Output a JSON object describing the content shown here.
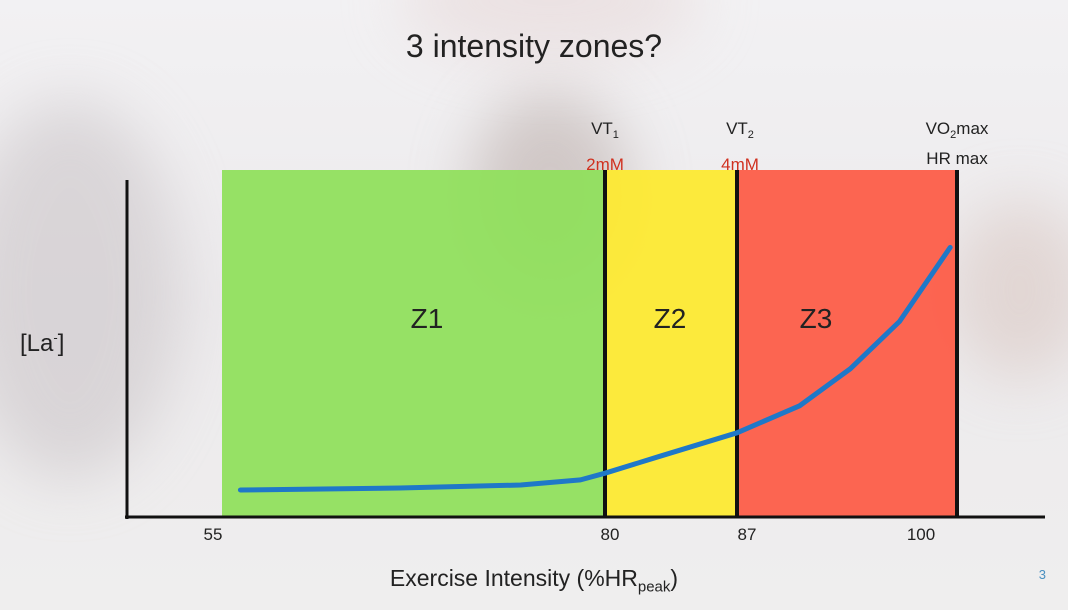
{
  "slide": {
    "title": "3 intensity zones?",
    "page_number": "3"
  },
  "chart_data": {
    "type": "line",
    "title": "3 intensity zones?",
    "xlabel": "Exercise Intensity (%HR",
    "xlabel_sub": "peak",
    "xlabel_end": ")",
    "ylabel": "[La",
    "ylabel_sup": "-",
    "ylabel_end": "]",
    "x_ticks": [
      55,
      80,
      87,
      100
    ],
    "y_scale": "relative (no ticks)",
    "grid": false,
    "zones": [
      {
        "label": "Z1",
        "from": 55,
        "to": 80,
        "color": "#8fe05a"
      },
      {
        "label": "Z2",
        "from": 80,
        "to": 87,
        "color": "#fdea2e"
      },
      {
        "label": "Z3",
        "from": 87,
        "to": 100,
        "color": "#fd5a45"
      }
    ],
    "markers": [
      {
        "x": 80,
        "label": "VT",
        "sub": "1",
        "value": "2mM"
      },
      {
        "x": 87,
        "label": "VT",
        "sub": "2",
        "value": "4mM"
      },
      {
        "x": 100,
        "label": "VO",
        "sub": "2",
        "label_end": "max",
        "value": "HR max"
      }
    ],
    "series": [
      {
        "color": "#1f78c8",
        "x": [
          56.2,
          66.6,
          74.5,
          78.4,
          80,
          82.9,
          87,
          90.7,
          93.7,
          96.6,
          99.6
        ],
        "y": [
          0.08,
          0.086,
          0.095,
          0.11,
          0.13,
          0.18,
          0.25,
          0.33,
          0.44,
          0.58,
          0.8
        ]
      }
    ]
  }
}
